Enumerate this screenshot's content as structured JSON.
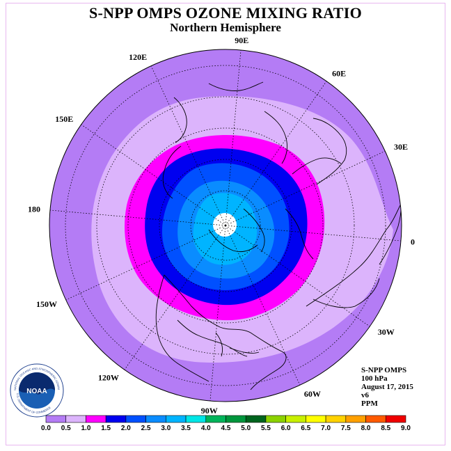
{
  "title": "S-NPP OMPS OZONE MIXING RATIO",
  "subtitle": "Northern Hemisphere",
  "longitude_labels": [
    {
      "text": "90E",
      "lon": 90
    },
    {
      "text": "120E",
      "lon": 120
    },
    {
      "text": "60E",
      "lon": 60
    },
    {
      "text": "150E",
      "lon": 150
    },
    {
      "text": "30E",
      "lon": 30
    },
    {
      "text": "180",
      "lon": 180
    },
    {
      "text": "0",
      "lon": 0
    },
    {
      "text": "150W",
      "lon": -150
    },
    {
      "text": "30W",
      "lon": -30
    },
    {
      "text": "120W",
      "lon": -120
    },
    {
      "text": "60W",
      "lon": -60
    },
    {
      "text": "90W",
      "lon": -90
    }
  ],
  "info": {
    "instrument": "S-NPP OMPS",
    "level": "100 hPa",
    "date": "August 17, 2015",
    "version": "v6",
    "units": "PPM"
  },
  "colorbar": {
    "ticks": [
      "0.0",
      "0.5",
      "1.0",
      "1.5",
      "2.0",
      "2.5",
      "3.0",
      "3.5",
      "4.0",
      "4.5",
      "5.0",
      "5.5",
      "6.0",
      "6.5",
      "7.0",
      "7.5",
      "8.0",
      "8.5",
      "9.0"
    ],
    "colors": [
      "#b47cf5",
      "#dcb4fc",
      "#ff00ff",
      "#0000f0",
      "#0050ff",
      "#0a8cff",
      "#00b4ff",
      "#00e6e6",
      "#00b45a",
      "#00963c",
      "#00641e",
      "#8cd200",
      "#c8f000",
      "#ffff00",
      "#ffd200",
      "#ffa000",
      "#ff5a00",
      "#f00000",
      "#7d5a3c"
    ]
  },
  "logo": {
    "text": "NOAA",
    "ring_text": "NATIONAL OCEANIC AND ATMOSPHERIC ADMINISTRATION",
    "ring_text_bottom": "U.S. DEPARTMENT OF COMMERCE"
  },
  "colors": {
    "background_purple": "#b47cf5",
    "light_purple": "#dcb4fc",
    "magenta": "#ff00ff",
    "blue": "#0000f0",
    "pole_gap": "#ffffff"
  }
}
